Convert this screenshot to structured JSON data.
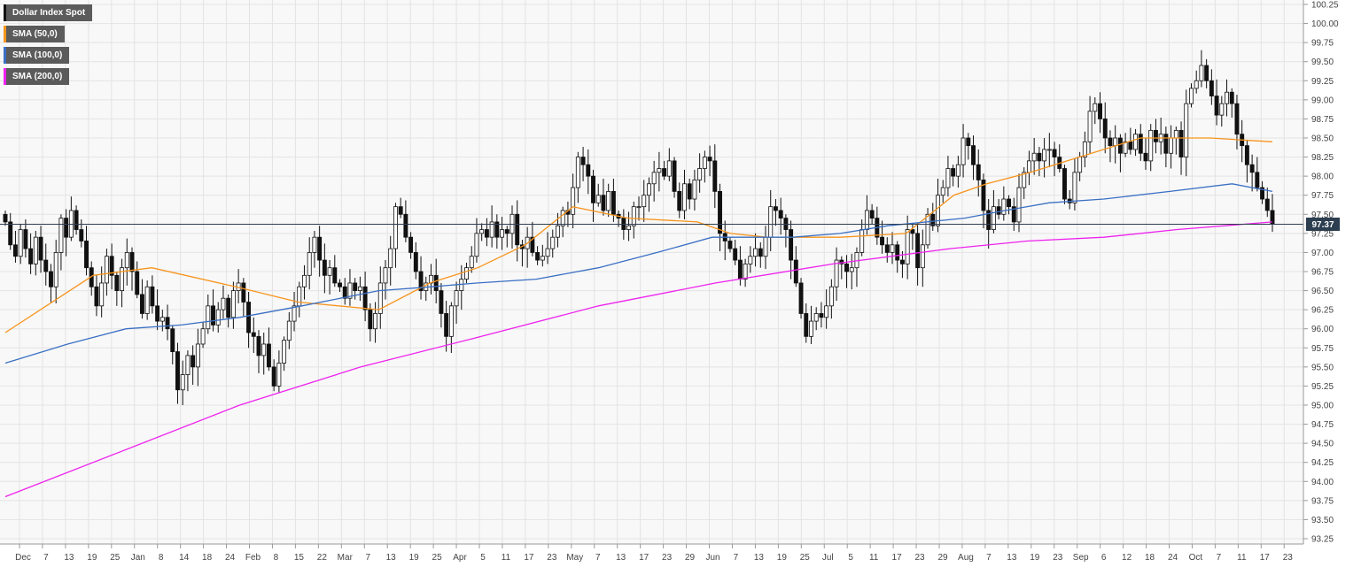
{
  "chart_data": {
    "type": "candlestick",
    "title": "Dollar Index Spot",
    "legend": [
      {
        "name": "Dollar Index Spot",
        "color": "#111111"
      },
      {
        "name": "SMA (50,0)",
        "color": "#f7941d"
      },
      {
        "name": "SMA (100,0)",
        "color": "#3a6fc4"
      },
      {
        "name": "SMA (200,0)",
        "color": "#ee22ee"
      }
    ],
    "legend_position": "top-left",
    "grid": true,
    "ylim": [
      93.25,
      100.25
    ],
    "y_ticks": [
      "100.25",
      "100.00",
      "99.75",
      "99.50",
      "99.25",
      "99.00",
      "98.75",
      "98.50",
      "98.25",
      "98.00",
      "97.75",
      "97.50",
      "97.25",
      "97.00",
      "96.75",
      "96.50",
      "96.25",
      "96.00",
      "95.75",
      "95.50",
      "95.25",
      "95.00",
      "94.75",
      "94.50",
      "94.25",
      "94.00",
      "93.75",
      "93.50",
      "93.25"
    ],
    "x_ticks": [
      "Dec",
      "7",
      "13",
      "19",
      "25",
      "Jan",
      "8",
      "14",
      "18",
      "24",
      "Feb",
      "8",
      "15",
      "22",
      "Mar",
      "7",
      "13",
      "19",
      "25",
      "Apr",
      "5",
      "11",
      "17",
      "23",
      "May",
      "7",
      "13",
      "17",
      "23",
      "29",
      "Jun",
      "7",
      "13",
      "19",
      "25",
      "Jul",
      "5",
      "11",
      "17",
      "23",
      "29",
      "Aug",
      "7",
      "13",
      "19",
      "23",
      "Sep",
      "6",
      "12",
      "18",
      "24",
      "Oct",
      "7",
      "11",
      "17",
      "23"
    ],
    "current_price": 97.37,
    "current_price_label": "97.37",
    "closes": [
      97.4,
      97.1,
      96.95,
      97.3,
      97.05,
      96.85,
      97.2,
      96.9,
      96.75,
      96.55,
      97.0,
      97.45,
      97.2,
      97.55,
      97.3,
      97.15,
      96.8,
      96.55,
      96.3,
      96.6,
      96.95,
      96.7,
      96.5,
      96.8,
      97.0,
      96.75,
      96.45,
      96.2,
      96.55,
      96.3,
      96.1,
      96.15,
      96.0,
      95.7,
      95.2,
      95.4,
      95.65,
      95.5,
      95.8,
      96.0,
      96.3,
      96.05,
      96.25,
      96.4,
      96.15,
      96.5,
      96.6,
      96.35,
      95.95,
      95.9,
      95.65,
      95.8,
      95.5,
      95.25,
      95.55,
      95.85,
      96.1,
      96.3,
      96.55,
      96.7,
      97.0,
      97.2,
      96.9,
      96.7,
      96.8,
      96.6,
      96.55,
      96.4,
      96.6,
      96.5,
      96.55,
      96.25,
      96.0,
      96.2,
      96.6,
      96.8,
      97.05,
      97.6,
      97.5,
      97.2,
      97.0,
      96.75,
      96.5,
      96.6,
      96.7,
      96.5,
      96.2,
      95.9,
      96.3,
      96.5,
      96.65,
      96.8,
      96.95,
      97.25,
      97.3,
      97.2,
      97.4,
      97.2,
      97.3,
      97.25,
      97.5,
      97.1,
      97.05,
      97.2,
      97.0,
      96.9,
      96.95,
      97.05,
      97.2,
      97.35,
      97.55,
      97.5,
      97.85,
      98.25,
      98.15,
      98.0,
      97.65,
      97.75,
      97.55,
      97.8,
      97.5,
      97.45,
      97.3,
      97.35,
      97.6,
      97.6,
      97.75,
      97.9,
      98.05,
      98.1,
      98.0,
      98.2,
      97.8,
      97.55,
      97.9,
      97.7,
      97.95,
      98.1,
      98.25,
      98.2,
      97.8,
      97.25,
      97.15,
      97.05,
      96.9,
      96.65,
      96.85,
      96.95,
      97.05,
      96.95,
      97.2,
      97.6,
      97.55,
      97.45,
      97.3,
      96.9,
      96.6,
      96.2,
      95.9,
      96.1,
      96.2,
      96.15,
      96.3,
      96.55,
      96.9,
      96.85,
      96.75,
      96.8,
      97.0,
      97.3,
      97.55,
      97.45,
      97.2,
      97.1,
      97.0,
      97.1,
      96.9,
      96.85,
      97.3,
      97.25,
      96.8,
      97.1,
      97.5,
      97.35,
      97.75,
      97.85,
      98.1,
      98.0,
      98.15,
      98.5,
      98.4,
      98.15,
      97.95,
      97.55,
      97.3,
      97.6,
      97.5,
      97.7,
      97.6,
      97.4,
      97.85,
      98.05,
      98.2,
      98.3,
      98.2,
      98.35,
      98.35,
      98.25,
      98.1,
      97.7,
      97.65,
      98.05,
      98.25,
      98.45,
      98.85,
      98.95,
      98.75,
      98.5,
      98.4,
      98.5,
      98.3,
      98.45,
      98.35,
      98.55,
      98.3,
      98.2,
      98.6,
      98.45,
      98.55,
      98.3,
      98.5,
      98.6,
      98.25,
      98.95,
      99.15,
      99.25,
      99.45,
      99.25,
      99.05,
      98.8,
      98.95,
      99.1,
      98.95,
      98.55,
      98.4,
      98.15,
      98.05,
      97.85,
      97.7,
      97.55,
      97.37
    ],
    "sma50": {
      "x_days": [
        0,
        24,
        40,
        63,
        80,
        102,
        116,
        129,
        142,
        155,
        170,
        189,
        198,
        208,
        228,
        246,
        259,
        268,
        280,
        300,
        310,
        329,
        346
      ],
      "values": [
        95.95,
        96.7,
        96.8,
        96.55,
        96.35,
        96.25,
        96.6,
        96.8,
        97.1,
        97.6,
        97.45,
        97.4,
        97.25,
        97.2,
        97.2,
        97.25,
        97.75,
        97.9,
        98.05,
        98.35,
        98.5,
        98.5,
        98.45
      ]
    },
    "sma100": {
      "x_days": [
        0,
        17,
        33,
        48,
        64,
        81,
        102,
        116,
        129,
        145,
        162,
        178,
        193,
        200,
        215,
        228,
        241,
        262,
        273,
        285,
        300,
        318,
        335,
        346
      ],
      "values": [
        95.55,
        95.8,
        96.0,
        96.05,
        96.15,
        96.3,
        96.5,
        96.55,
        96.6,
        96.65,
        96.8,
        97.0,
        97.2,
        97.2,
        97.2,
        97.25,
        97.35,
        97.45,
        97.55,
        97.65,
        97.7,
        97.8,
        97.9,
        97.8
      ]
    },
    "sma200": {
      "x_days": [
        0,
        32,
        64,
        97,
        130,
        162,
        194,
        226,
        258,
        279,
        300,
        320,
        346
      ],
      "values": [
        93.8,
        94.4,
        95.0,
        95.5,
        95.9,
        96.3,
        96.6,
        96.85,
        97.05,
        97.15,
        97.2,
        97.3,
        97.4
      ]
    }
  }
}
